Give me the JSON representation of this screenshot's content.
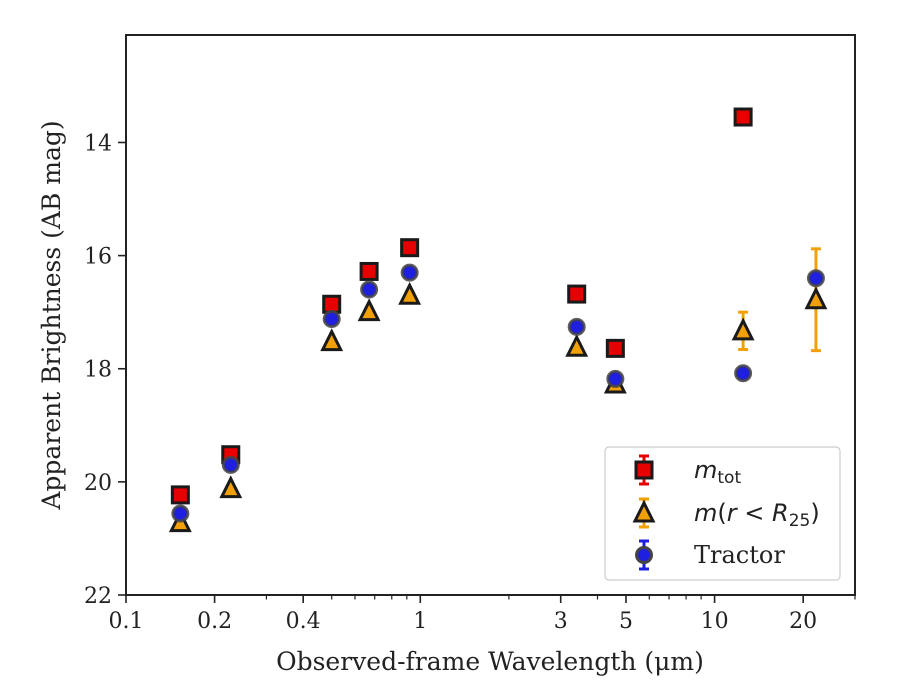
{
  "chart_data": {
    "type": "scatter",
    "xlabel": "Observed-frame Wavelength (μm)",
    "ylabel": "Apparent Brightness (AB mag)",
    "x_scale": "log",
    "xlim": [
      0.1,
      30
    ],
    "ylim": [
      22,
      12.1
    ],
    "y_inverted": true,
    "x_ticks": [
      {
        "value": 0.1,
        "label": "0.1"
      },
      {
        "value": 0.2,
        "label": "0.2"
      },
      {
        "value": 0.4,
        "label": "0.4"
      },
      {
        "value": 1,
        "label": "1"
      },
      {
        "value": 3,
        "label": "3"
      },
      {
        "value": 5,
        "label": "5"
      },
      {
        "value": 10,
        "label": "10"
      },
      {
        "value": 20,
        "label": "20"
      }
    ],
    "x_minor_ticks": [
      0.3,
      0.5,
      0.6,
      0.7,
      0.8,
      0.9,
      2,
      4,
      6,
      7,
      8,
      9,
      30
    ],
    "y_ticks": [
      {
        "value": 14,
        "label": "14"
      },
      {
        "value": 16,
        "label": "16"
      },
      {
        "value": 18,
        "label": "18"
      },
      {
        "value": 20,
        "label": "20"
      },
      {
        "value": 22,
        "label": "22"
      }
    ],
    "grid": false,
    "legend_position": "lower-right",
    "series": [
      {
        "name": "m_tot",
        "legend_text": "mtot",
        "marker": "square",
        "face_color": "#e60000",
        "edge_color": "#1a1a1a",
        "error_color": "#e60000",
        "points": [
          {
            "x": 0.153,
            "y": 20.23,
            "err": 0.05
          },
          {
            "x": 0.227,
            "y": 19.52,
            "err": 0.05
          },
          {
            "x": 0.5,
            "y": 16.86,
            "err": 0.05
          },
          {
            "x": 0.67,
            "y": 16.28,
            "err": 0.05
          },
          {
            "x": 0.92,
            "y": 15.86,
            "err": 0.05
          },
          {
            "x": 3.4,
            "y": 16.68,
            "err": 0.05
          },
          {
            "x": 4.6,
            "y": 17.64,
            "err": 0.05
          },
          {
            "x": 12.5,
            "y": 13.55,
            "err": 0.03
          }
        ]
      },
      {
        "name": "m(r < R25)",
        "legend_text": "m(r < R25)",
        "marker": "triangle",
        "face_color": "#f2a007",
        "edge_color": "#1a1a1a",
        "error_color": "#f2a007",
        "points": [
          {
            "x": 0.153,
            "y": 20.72,
            "err": 0.04
          },
          {
            "x": 0.227,
            "y": 20.12,
            "err": 0.04
          },
          {
            "x": 0.5,
            "y": 17.52,
            "err": 0.04
          },
          {
            "x": 0.67,
            "y": 16.99,
            "err": 0.04
          },
          {
            "x": 0.92,
            "y": 16.7,
            "err": 0.04
          },
          {
            "x": 3.4,
            "y": 17.62,
            "err": 0.05
          },
          {
            "x": 4.6,
            "y": 18.27,
            "err": 0.05
          },
          {
            "x": 12.5,
            "y": 17.33,
            "err": 0.33
          },
          {
            "x": 22.1,
            "y": 16.78,
            "err": 0.9
          }
        ]
      },
      {
        "name": "Tractor",
        "legend_text": "Tractor",
        "marker": "circle",
        "face_color": "#1f1fe0",
        "edge_color": "#444444",
        "error_color": "#1f1fe0",
        "points": [
          {
            "x": 0.153,
            "y": 20.56,
            "err": 0.05
          },
          {
            "x": 0.227,
            "y": 19.7,
            "err": 0.05
          },
          {
            "x": 0.5,
            "y": 17.12,
            "err": 0.05
          },
          {
            "x": 0.67,
            "y": 16.6,
            "err": 0.05
          },
          {
            "x": 0.92,
            "y": 16.3,
            "err": 0.05
          },
          {
            "x": 3.4,
            "y": 17.26,
            "err": 0.05
          },
          {
            "x": 4.6,
            "y": 18.18,
            "err": 0.05
          },
          {
            "x": 12.5,
            "y": 18.08,
            "err": 0.05
          },
          {
            "x": 22.1,
            "y": 16.4,
            "err": 0.05
          }
        ]
      }
    ]
  }
}
